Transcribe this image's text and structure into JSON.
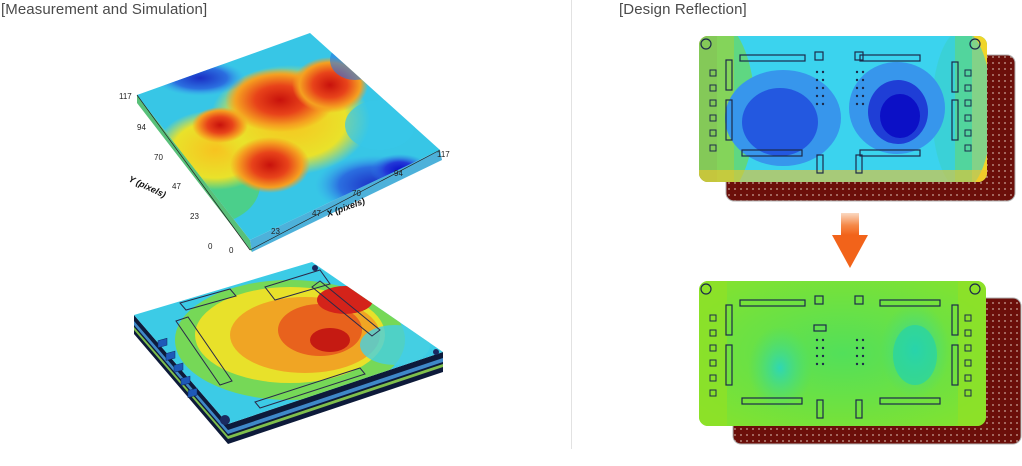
{
  "titles": {
    "left": "[Measurement and Simulation]",
    "right": "[Design Reflection]"
  },
  "surface_plot": {
    "y_axis_label": "Y (pixels)",
    "x_axis_label": "X (pixels)",
    "y_ticks": [
      "0",
      "23",
      "47",
      "70",
      "94",
      "117"
    ],
    "x_ticks": [
      "0",
      "23",
      "47",
      "70",
      "94",
      "117"
    ]
  },
  "colors": {
    "heat_red": "#d71d10",
    "heat_orange": "#f28a1c",
    "heat_yellow": "#f5e21f",
    "heat_green": "#7fd63c",
    "heat_cyan": "#30c7e8",
    "heat_blue": "#1f3fc9",
    "pcb_maroon": "#6b0f0a",
    "arrow_orange": "#f26a1b"
  }
}
